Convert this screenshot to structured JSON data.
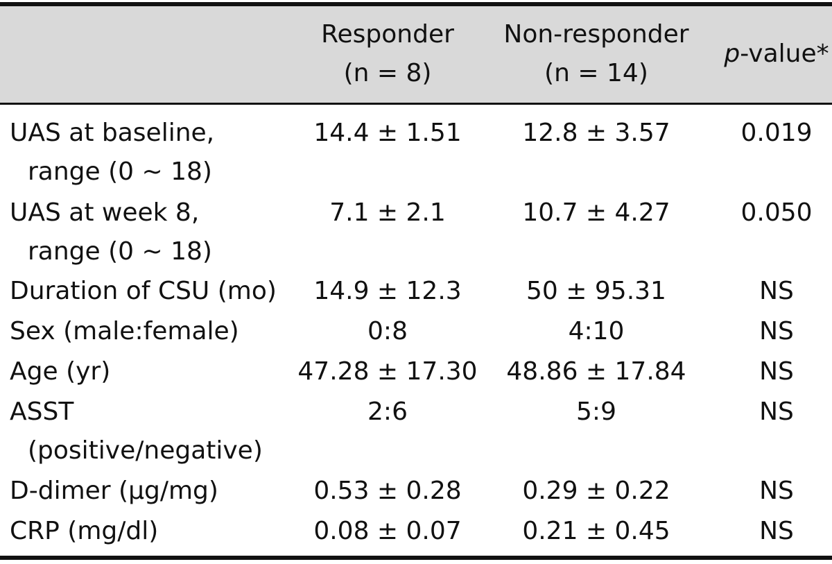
{
  "header": {
    "col1_line1": "Responder",
    "col1_line2": "(n = 8)",
    "col2_line1": "Non-responder",
    "col2_line2": "(n = 14)",
    "col3_p": "p",
    "col3_rest": "-value*"
  },
  "rows": [
    {
      "label": "UAS at baseline,",
      "label2": "range (0 ~ 18)",
      "responder": "14.4 ± 1.51",
      "nonresponder": "12.8 ± 3.57",
      "p": "0.019"
    },
    {
      "label": "UAS at week 8,",
      "label2": "range (0 ~ 18)",
      "responder": "7.1 ± 2.1",
      "nonresponder": "10.7 ± 4.27",
      "p": "0.050"
    },
    {
      "label": "Duration of CSU (mo)",
      "responder": "14.9 ± 12.3",
      "nonresponder": "50 ± 95.31",
      "p": "NS"
    },
    {
      "label": "Sex (male:female)",
      "responder": "0:8",
      "nonresponder": "4:10",
      "p": "NS"
    },
    {
      "label": "Age (yr)",
      "responder": "47.28 ± 17.30",
      "nonresponder": "48.86 ± 17.84",
      "p": "NS"
    },
    {
      "label": "ASST",
      "label2": "(positive/negative)",
      "responder": "2:6",
      "nonresponder": "5:9",
      "p": "NS"
    },
    {
      "label": "D-dimer (µg/mg)",
      "responder": "0.53 ± 0.28",
      "nonresponder": "0.29 ± 0.22",
      "p": "NS"
    },
    {
      "label": "CRP (mg/dl)",
      "responder": "0.08 ± 0.07",
      "nonresponder": "0.21 ± 0.45",
      "p": "NS"
    }
  ]
}
